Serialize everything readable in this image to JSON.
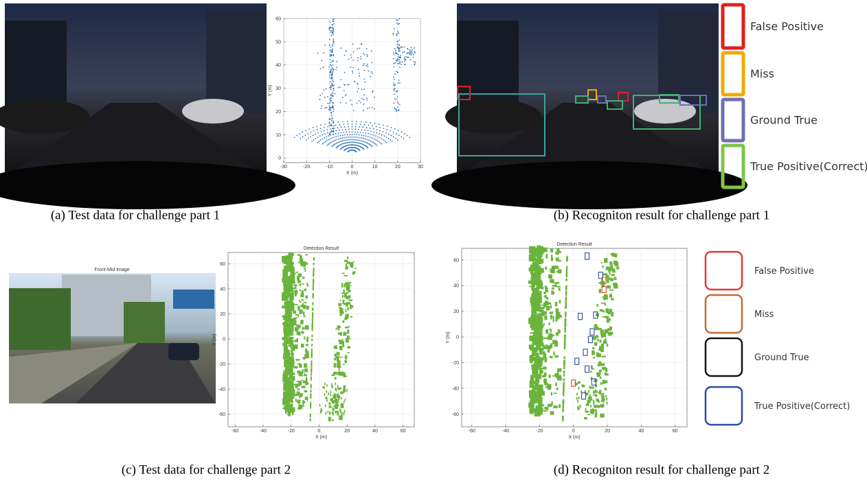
{
  "panels": [
    {
      "caption": "(a) Test data for challenge part 1",
      "plot": {
        "type": "scatter",
        "xlabel": "X (m)",
        "ylabel": "Y (m)",
        "xlim": [
          -30,
          30
        ],
        "ylim": [
          -2,
          60
        ],
        "xticks": [
          -30,
          -20,
          -10,
          0,
          10,
          20,
          30
        ],
        "yticks": [
          0,
          10,
          20,
          30,
          40,
          50,
          60
        ],
        "color": "#2f6fb5"
      }
    },
    {
      "caption": "(b) Recogniton result for challenge part 1",
      "legend": [
        {
          "label": "False Positive",
          "color": "#e0201c"
        },
        {
          "label": "Miss",
          "color": "#f2a900"
        },
        {
          "label": "Ground True",
          "color": "#6f6fb4"
        },
        {
          "label": "True Positive(Correct)",
          "color": "#7fc447"
        }
      ]
    },
    {
      "caption": "(c) Test data for challenge part 2",
      "image_title": "Front-Mid Image",
      "plot": {
        "type": "scatter",
        "title": "Detection Result",
        "xlabel": "X (m)",
        "ylabel": "Y (m)",
        "xlim": [
          -65,
          68
        ],
        "ylim": [
          -70,
          69
        ],
        "xticks": [
          -60,
          -40,
          -20,
          0,
          20,
          40,
          60
        ],
        "yticks": [
          -60,
          -40,
          -20,
          0,
          20,
          40,
          60
        ],
        "color": "#6ab43c"
      }
    },
    {
      "caption": "(d) Recogniton result for challenge part 2",
      "plot": {
        "type": "scatter",
        "title": "Detection Result",
        "xlabel": "X (m)",
        "ylabel": "Y (m)",
        "xlim": [
          -66,
          67
        ],
        "ylim": [
          -70,
          69
        ],
        "xticks": [
          -60,
          -40,
          -20,
          0,
          20,
          40,
          60
        ],
        "yticks": [
          -60,
          -40,
          -20,
          0,
          20,
          40,
          60
        ],
        "color": "#6ab43c"
      },
      "legend": [
        {
          "label": "False Positive",
          "color": "#e03a36"
        },
        {
          "label": "Miss",
          "color": "#c46a34"
        },
        {
          "label": "Ground True",
          "color": "#111111"
        },
        {
          "label": "True Positive(Correct)",
          "color": "#2a4aa8"
        }
      ]
    }
  ]
}
